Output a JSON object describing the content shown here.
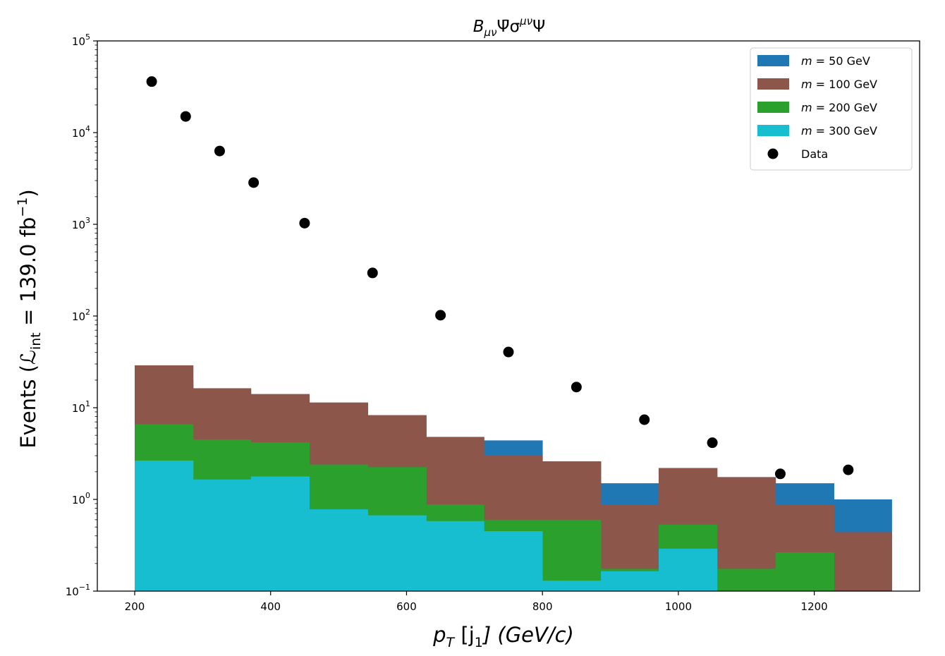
{
  "chart_data": {
    "type": "bar",
    "title_base": "B",
    "title_sub": "μν",
    "title_mid": "Ψ̄σ",
    "title_sup": "μν",
    "title_end": "Ψ",
    "xlabel_pt": "p",
    "xlabel_pt_sub": "T",
    "xlabel_rest": " [j",
    "xlabel_j_sub": "1",
    "xlabel_units": "] (GeV/c)",
    "ylabel_main": "Events (",
    "ylabel_L": "ℒ",
    "ylabel_L_sub": "int",
    "ylabel_eq": " = 139.0 fb",
    "ylabel_sup": "−1",
    "ylabel_close": ")",
    "xlim": [
      145,
      1355
    ],
    "ylim": [
      0.1,
      100000
    ],
    "yscale": "log",
    "x_ticks": [
      200,
      400,
      600,
      800,
      1000,
      1200
    ],
    "x_tick_labels": [
      "200",
      "400",
      "600",
      "800",
      "1000",
      "1200"
    ],
    "y_ticks": [
      0.1,
      1,
      10,
      100,
      1000,
      10000,
      100000
    ],
    "y_tick_labels": [
      {
        "base": "10",
        "exp": "−1"
      },
      {
        "base": "10",
        "exp": "0"
      },
      {
        "base": "10",
        "exp": "1"
      },
      {
        "base": "10",
        "exp": "2"
      },
      {
        "base": "10",
        "exp": "3"
      },
      {
        "base": "10",
        "exp": "4"
      },
      {
        "base": "10",
        "exp": "5"
      }
    ],
    "bin_edges": [
      200,
      286,
      371,
      457,
      543,
      629,
      714,
      800,
      886,
      971,
      1057,
      1143,
      1229,
      1314
    ],
    "series": [
      {
        "name": "m = 50 GeV",
        "label_prefix": "m",
        "label_value": " = 50 GeV",
        "color": "#1f77b4",
        "values": [
          20,
          16,
          14,
          11.2,
          8.2,
          4.8,
          4.4,
          2.6,
          1.5,
          2.2,
          1.75,
          1.5,
          1.0
        ]
      },
      {
        "name": "m = 100 GeV",
        "label_prefix": "m",
        "label_value": " = 100 GeV",
        "color": "#8c564b",
        "values": [
          29,
          16.3,
          14.1,
          11.4,
          8.3,
          4.8,
          3.05,
          2.6,
          0.88,
          2.2,
          1.75,
          0.88,
          0.44
        ]
      },
      {
        "name": "m = 200 GeV",
        "label_prefix": "m",
        "label_value": " = 200 GeV",
        "color": "#2ca02c",
        "values": [
          6.6,
          4.5,
          4.2,
          2.4,
          2.25,
          0.88,
          0.6,
          0.6,
          0.175,
          0.53,
          0.175,
          0.265,
          0
        ]
      },
      {
        "name": "m = 300 GeV",
        "label_prefix": "m",
        "label_value": " = 300 GeV",
        "color": "#17becf",
        "values": [
          2.65,
          1.65,
          1.78,
          0.78,
          0.67,
          0.58,
          0.45,
          0.13,
          0.165,
          0.29,
          0,
          0,
          0
        ]
      }
    ],
    "data_points": {
      "name": "Data",
      "color": "#000000",
      "x": [
        225,
        275,
        325,
        375,
        450,
        550,
        650,
        750,
        850,
        950,
        1050,
        1150,
        1250
      ],
      "y": [
        36000,
        15000,
        6300,
        2850,
        1030,
        295,
        102,
        40.5,
        16.8,
        7.4,
        4.15,
        1.9,
        2.1
      ]
    },
    "legend_position": "top-right",
    "grid": false
  }
}
